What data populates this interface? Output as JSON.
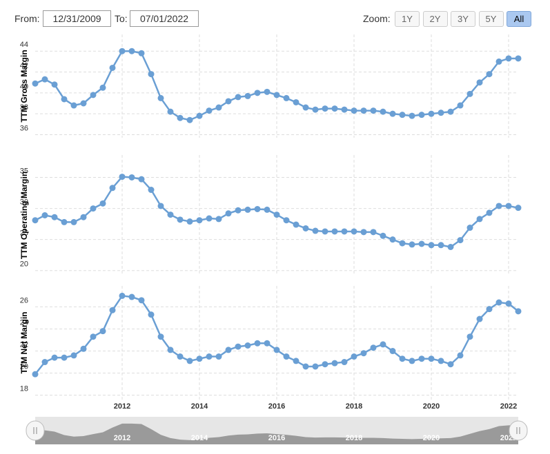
{
  "controls": {
    "from_label": "From:",
    "from_value": "12/31/2009",
    "to_label": "To:",
    "to_value": "07/01/2022",
    "zoom_label": "Zoom:",
    "zoom_buttons": [
      "1Y",
      "2Y",
      "3Y",
      "5Y",
      "All"
    ],
    "zoom_selected": "All"
  },
  "chart_data": [
    {
      "type": "line",
      "y_label": "TTM Gross Margin",
      "color": "#6a9fd4",
      "grid": true,
      "x": [
        2009.75,
        2010,
        2010.25,
        2010.5,
        2010.75,
        2011,
        2011.25,
        2011.5,
        2011.75,
        2012,
        2012.25,
        2012.5,
        2012.75,
        2013,
        2013.25,
        2013.5,
        2013.75,
        2014,
        2014.25,
        2014.5,
        2014.75,
        2015,
        2015.25,
        2015.5,
        2015.75,
        2016,
        2016.25,
        2016.5,
        2016.75,
        2017,
        2017.25,
        2017.5,
        2017.75,
        2018,
        2018.25,
        2018.5,
        2018.75,
        2019,
        2019.25,
        2019.5,
        2019.75,
        2020,
        2020.25,
        2020.5,
        2020.75,
        2021,
        2021.25,
        2021.5,
        2021.75,
        2022,
        2022.25
      ],
      "values": [
        40.9,
        41.3,
        40.8,
        39.4,
        38.8,
        39.0,
        39.8,
        40.5,
        42.4,
        44.0,
        44.0,
        43.8,
        41.8,
        39.5,
        38.2,
        37.6,
        37.4,
        37.8,
        38.3,
        38.6,
        39.2,
        39.6,
        39.7,
        40.0,
        40.1,
        39.8,
        39.5,
        39.1,
        38.6,
        38.4,
        38.5,
        38.5,
        38.4,
        38.3,
        38.3,
        38.3,
        38.2,
        38.0,
        37.9,
        37.8,
        37.9,
        38.0,
        38.1,
        38.2,
        38.8,
        39.9,
        41.0,
        41.8,
        43.0,
        43.3,
        43.3
      ],
      "xlim": [
        2009.75,
        2022.25
      ],
      "xticks": [
        2012,
        2014,
        2016,
        2018,
        2020,
        2022
      ],
      "ylim": [
        35.7,
        45.6
      ],
      "yticks": [
        36,
        38,
        40,
        42,
        44
      ]
    },
    {
      "type": "line",
      "y_label": "TTM Operating Margin",
      "color": "#6a9fd4",
      "grid": true,
      "x": [
        2009.75,
        2010,
        2010.25,
        2010.5,
        2010.75,
        2011,
        2011.25,
        2011.5,
        2011.75,
        2012,
        2012.25,
        2012.5,
        2012.75,
        2013,
        2013.25,
        2013.5,
        2013.75,
        2014,
        2014.25,
        2014.5,
        2014.75,
        2015,
        2015.25,
        2015.5,
        2015.75,
        2016,
        2016.25,
        2016.5,
        2016.75,
        2017,
        2017.25,
        2017.5,
        2017.75,
        2018,
        2018.25,
        2018.5,
        2018.75,
        2019,
        2019.25,
        2019.5,
        2019.75,
        2020,
        2020.25,
        2020.5,
        2020.75,
        2021,
        2021.25,
        2021.5,
        2021.75,
        2022,
        2022.25
      ],
      "values": [
        28.1,
        28.9,
        28.6,
        27.8,
        27.8,
        28.6,
        30.0,
        30.8,
        33.3,
        35.1,
        35.0,
        34.7,
        33.0,
        30.4,
        29.0,
        28.2,
        27.9,
        28.1,
        28.4,
        28.3,
        29.2,
        29.7,
        29.8,
        29.9,
        29.8,
        29.0,
        28.1,
        27.4,
        26.8,
        26.4,
        26.3,
        26.3,
        26.3,
        26.3,
        26.2,
        26.2,
        25.6,
        25.0,
        24.4,
        24.2,
        24.3,
        24.1,
        24.1,
        23.8,
        24.9,
        26.9,
        28.3,
        29.3,
        30.4,
        30.4,
        30.1
      ],
      "xlim": [
        2009.75,
        2022.25
      ],
      "xticks": [
        2012,
        2014,
        2016,
        2018,
        2020,
        2022
      ],
      "ylim": [
        19.2,
        38.6
      ],
      "yticks": [
        20,
        25,
        30,
        35
      ]
    },
    {
      "type": "line",
      "y_label": "TTM Net Margin",
      "color": "#6a9fd4",
      "grid": true,
      "x": [
        2009.75,
        2010,
        2010.25,
        2010.5,
        2010.75,
        2011,
        2011.25,
        2011.5,
        2011.75,
        2012,
        2012.25,
        2012.5,
        2012.75,
        2013,
        2013.25,
        2013.5,
        2013.75,
        2014,
        2014.25,
        2014.5,
        2014.75,
        2015,
        2015.25,
        2015.5,
        2015.75,
        2016,
        2016.25,
        2016.5,
        2016.75,
        2017,
        2017.25,
        2017.5,
        2017.75,
        2018,
        2018.25,
        2018.5,
        2018.75,
        2019,
        2019.25,
        2019.5,
        2019.75,
        2020,
        2020.25,
        2020.5,
        2020.75,
        2021,
        2021.25,
        2021.5,
        2021.75,
        2022,
        2022.25
      ],
      "values": [
        19.9,
        21.0,
        21.4,
        21.4,
        21.6,
        22.2,
        23.3,
        23.8,
        25.7,
        27.0,
        26.9,
        26.6,
        25.3,
        23.3,
        22.1,
        21.5,
        21.1,
        21.3,
        21.5,
        21.5,
        22.1,
        22.4,
        22.5,
        22.7,
        22.7,
        22.1,
        21.5,
        21.1,
        20.6,
        20.6,
        20.8,
        20.9,
        21.0,
        21.5,
        21.8,
        22.3,
        22.6,
        22.0,
        21.3,
        21.1,
        21.3,
        21.3,
        21.1,
        20.8,
        21.6,
        23.3,
        24.9,
        25.8,
        26.4,
        26.3,
        25.6
      ],
      "xlim": [
        2009.75,
        2022.25
      ],
      "xticks": [
        2012,
        2014,
        2016,
        2018,
        2020,
        2022
      ],
      "ylim": [
        17.6,
        27.9
      ],
      "yticks": [
        18,
        20,
        22,
        24,
        26
      ]
    }
  ]
}
